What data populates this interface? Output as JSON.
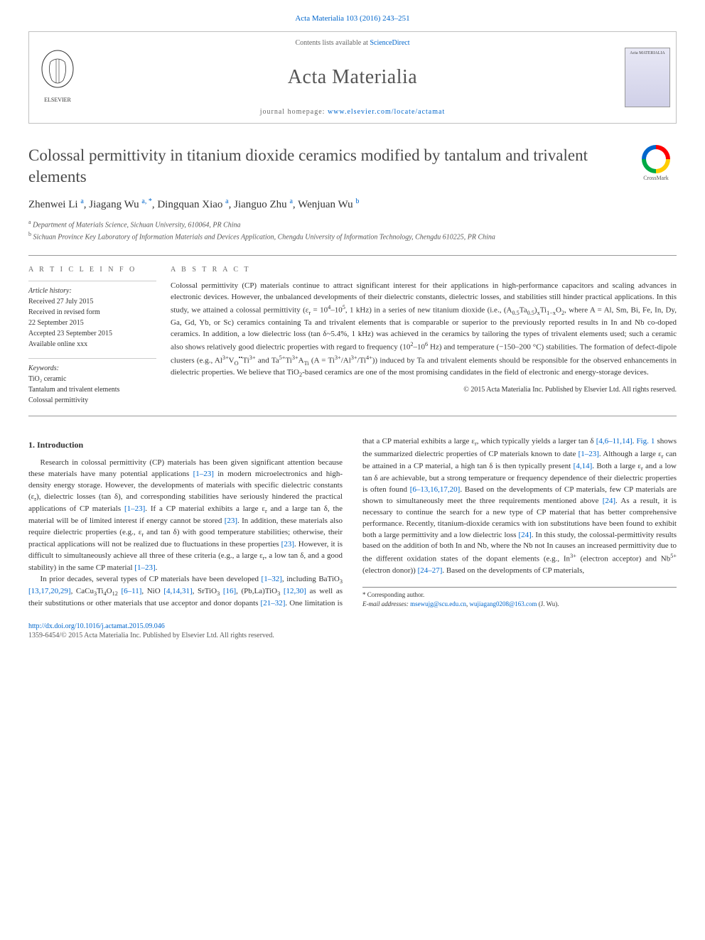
{
  "citation": "Acta Materialia 103 (2016) 243–251",
  "header": {
    "contents_prefix": "Contents lists available at ",
    "contents_link": "ScienceDirect",
    "journal": "Acta Materialia",
    "homepage_prefix": "journal homepage: ",
    "homepage_url": "www.elsevier.com/locate/actamat",
    "cover_label": "Acta MATERIALIA"
  },
  "crossmark_label": "CrossMark",
  "title": "Colossal permittivity in titanium dioxide ceramics modified by tantalum and trivalent elements",
  "authors_html": "Zhenwei Li <span class='sup'>a</span>, Jiagang Wu <span class='sup'>a, *</span>, Dingquan Xiao <span class='sup'>a</span>, Jianguo Zhu <span class='sup'>a</span>, Wenjuan Wu <span class='sup'>b</span>",
  "affiliations": {
    "a": "Department of Materials Science, Sichuan University, 610064, PR China",
    "b": "Sichuan Province Key Laboratory of Information Materials and Devices Application, Chengdu University of Information Technology, Chengdu 610225, PR China"
  },
  "info_heading": "A R T I C L E  I N F O",
  "abstract_heading": "A B S T R A C T",
  "history": {
    "label": "Article history:",
    "received": "Received 27 July 2015",
    "revised": "Received in revised form",
    "revised_date": "22 September 2015",
    "accepted": "Accepted 23 September 2015",
    "online": "Available online xxx"
  },
  "keywords": {
    "label": "Keywords:",
    "items": [
      "TiO₂ ceramic",
      "Tantalum and trivalent elements",
      "Colossal permittivity"
    ]
  },
  "abstract_html": "Colossal permittivity (CP) materials continue to attract significant interest for their applications in high-performance capacitors and scaling advances in electronic devices. However, the unbalanced developments of their dielectric constants, dielectric losses, and stabilities still hinder practical applications. In this study, we attained a colossal permittivity (ε<sub>r</sub> = 10<sup>4</sup>–10<sup>5</sup>, 1 kHz) in a series of new titanium dioxide (i.e., (A<sub>0.5</sub>Ta<sub>0.5</sub>)<sub>x</sub>Ti<sub>1−x</sub>O<sub>2</sub>, where A = Al, Sm, Bi, Fe, In, Dy, Ga, Gd, Yb, or Sc) ceramics containing Ta and trivalent elements that is comparable or superior to the previously reported results in In and Nb co-doped ceramics. In addition, a low dielectric loss (tan δ~5.4%, 1 kHz) was achieved in the ceramics by tailoring the types of trivalent elements used; such a ceramic also shows relatively good dielectric properties with regard to frequency (10<sup>2</sup>–10<sup>6</sup> Hz) and temperature (−150–200 °C) stabilities. The formation of defect-dipole clusters (e.g., Al<sup>3+</sup>V<sub>O</sub><sup>••</sup>Ti<sup>3+</sup> and Ta<sup>5+</sup>Ti<sup>3+</sup>A<sub>Ti</sub> (A = Ti<sup>3+</sup>/Al<sup>3+</sup>/Ti<sup>4+</sup>)) induced by Ta and trivalent elements should be responsible for the observed enhancements in dielectric properties. We believe that TiO<sub>2</sub>-based ceramics are one of the most promising candidates in the field of electronic and energy-storage devices.",
  "copyright": "© 2015 Acta Materialia Inc. Published by Elsevier Ltd. All rights reserved.",
  "section1_heading": "1. Introduction",
  "intro_p1_html": "Research in colossal permittivity (CP) materials has been given significant attention because these materials have many potential applications <span class='ref-link'>[1–23]</span> in modern microelectronics and high-density energy storage. However, the developments of materials with specific dielectric constants (ε<sub>r</sub>), dielectric losses (tan δ), and corresponding stabilities have seriously hindered the practical applications of CP materials <span class='ref-link'>[1–23]</span>. If a CP material exhibits a large ε<sub>r</sub> and a large tan δ, the material will be of limited interest if energy cannot be stored <span class='ref-link'>[23]</span>. In addition, these materials also require dielectric properties (e.g., ε<sub>r</sub> and tan δ) with good temperature stabilities; otherwise, their practical applications will not be realized due to fluctuations in these properties <span class='ref-link'>[23]</span>. However, it is difficult to simultaneously achieve all three of these criteria (e.g., a large ε<sub>r</sub>, a low tan δ, and a good stability) in the same CP material <span class='ref-link'>[1–23]</span>.",
  "intro_p2_html": "In prior decades, several types of CP materials have been developed <span class='ref-link'>[1–32]</span>, including BaTiO<sub>3</sub> <span class='ref-link'>[13,17,20,29]</span>, CaCu<sub>3</sub>Ti<sub>4</sub>O<sub>12</sub> <span class='ref-link'>[6–11]</span>, NiO <span class='ref-link'>[4,14,31]</span>, SrTiO<sub>3</sub> <span class='ref-link'>[16]</span>, (Pb,La)TiO<sub>3</sub> <span class='ref-link'>[12,30]</span> as well as their substitutions or other materials that use acceptor and donor dopants <span class='ref-link'>[21–32]</span>. One limitation is that a CP material exhibits a large ε<sub>r</sub>, which typically yields a larger tan δ <span class='ref-link'>[4,6–11,14]</span>. <span class='ref-link'>Fig. 1</span> shows the summarized dielectric properties of CP materials known to date <span class='ref-link'>[1–23]</span>. Although a large ε<sub>r</sub> can be attained in a CP material, a high tan δ is then typically present <span class='ref-link'>[4,14]</span>. Both a large ε<sub>r</sub> and a low tan δ are achievable, but a strong temperature or frequency dependence of their dielectric properties is often found <span class='ref-link'>[6–13,16,17,20]</span>. Based on the developments of CP materials, few CP materials are shown to simultaneously meet the three requirements mentioned above <span class='ref-link'>[24]</span>. As a result, it is necessary to continue the search for a new type of CP material that has better comprehensive performance. Recently, titanium-dioxide ceramics with ion substitutions have been found to exhibit both a large permittivity and a low dielectric loss <span class='ref-link'>[24]</span>. In this study, the colossal-permittivity results based on the addition of both In and Nb, where the Nb not In causes an increased permittivity due to the different oxidation states of the dopant elements (e.g., In<sup>3+</sup> (electron acceptor) and Nb<sup>5+</sup> (electron donor)) <span class='ref-link'>[24–27]</span>. Based on the developments of CP materials,",
  "footnote": {
    "corresponding": "* Corresponding author.",
    "email_label": "E-mail addresses:",
    "email1": "msewujg@scu.edu.cn",
    "email2": "wujiagang0208@163.com",
    "email_suffix": "(J. Wu)."
  },
  "footer": {
    "doi": "http://dx.doi.org/10.1016/j.actamat.2015.09.046",
    "issn_line": "1359-6454/© 2015 Acta Materialia Inc. Published by Elsevier Ltd. All rights reserved."
  },
  "colors": {
    "link": "#0066cc",
    "text": "#333333",
    "heading_gray": "#4a4a4a",
    "border": "#c0c0c0",
    "elsevier_orange": "#ff6600"
  }
}
